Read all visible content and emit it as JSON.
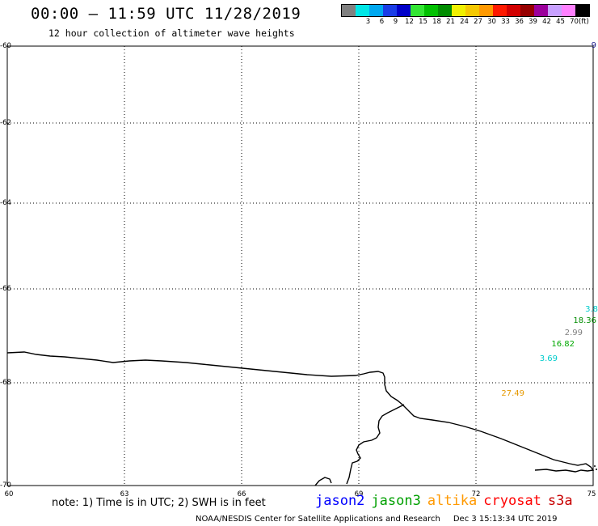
{
  "header": {
    "title": "00:00 – 11:59 UTC 11/28/2019",
    "subtitle": "12 hour collection of altimeter wave heights"
  },
  "color_scale": {
    "unit": "(ft)",
    "bins": [
      {
        "color": "#808080",
        "label": ""
      },
      {
        "color": "#00e6e6",
        "label": "3"
      },
      {
        "color": "#00a8f0",
        "label": "6"
      },
      {
        "color": "#1a3de6",
        "label": "9"
      },
      {
        "color": "#0000c8",
        "label": "12"
      },
      {
        "color": "#33e633",
        "label": "15"
      },
      {
        "color": "#00c000",
        "label": "18"
      },
      {
        "color": "#008c00",
        "label": "21"
      },
      {
        "color": "#f0f000",
        "label": "24"
      },
      {
        "color": "#f5c800",
        "label": "27"
      },
      {
        "color": "#ff9900",
        "label": "30"
      },
      {
        "color": "#ff1a00",
        "label": "33"
      },
      {
        "color": "#d20000",
        "label": "36"
      },
      {
        "color": "#960000",
        "label": "39"
      },
      {
        "color": "#9b009b",
        "label": "42"
      },
      {
        "color": "#c8a0ff",
        "label": "45"
      },
      {
        "color": "#ff80ff",
        "label": "70"
      },
      {
        "color": "#000000",
        "label": ""
      }
    ]
  },
  "map": {
    "lon_range": [
      60,
      75
    ],
    "lat_range": [
      -70,
      -60
    ],
    "lat_ticks": [
      "-60",
      "-62",
      "-64",
      "-66",
      "-68",
      "-70"
    ],
    "lon_ticks": [
      "60",
      "63",
      "66",
      "69",
      "72",
      "75"
    ],
    "corner_label": "9",
    "observations": [
      {
        "value": "3.8",
        "color": "#00cccc"
      },
      {
        "value": "18.36",
        "color": "#008c00"
      },
      {
        "value": "2.99",
        "color": "#808080"
      },
      {
        "value": "16.82",
        "color": "#00a800"
      },
      {
        "value": "3.69",
        "color": "#00cccc"
      },
      {
        "value": "27.49",
        "color": "#e69900"
      }
    ]
  },
  "note": "note: 1) Time is in UTC; 2) SWH is in feet",
  "satellites": [
    {
      "name": "jason2",
      "color": "#0000ff"
    },
    {
      "name": "jason3",
      "color": "#00a000"
    },
    {
      "name": "altika",
      "color": "#ff9900"
    },
    {
      "name": "cryosat",
      "color": "#ff0000"
    },
    {
      "name": "s3a",
      "color": "#c80000"
    }
  ],
  "footer": {
    "credit": "NOAA/NESDIS Center for Satellite Applications and Research",
    "timestamp": "Dec  3 15:13:34 UTC 2019"
  }
}
